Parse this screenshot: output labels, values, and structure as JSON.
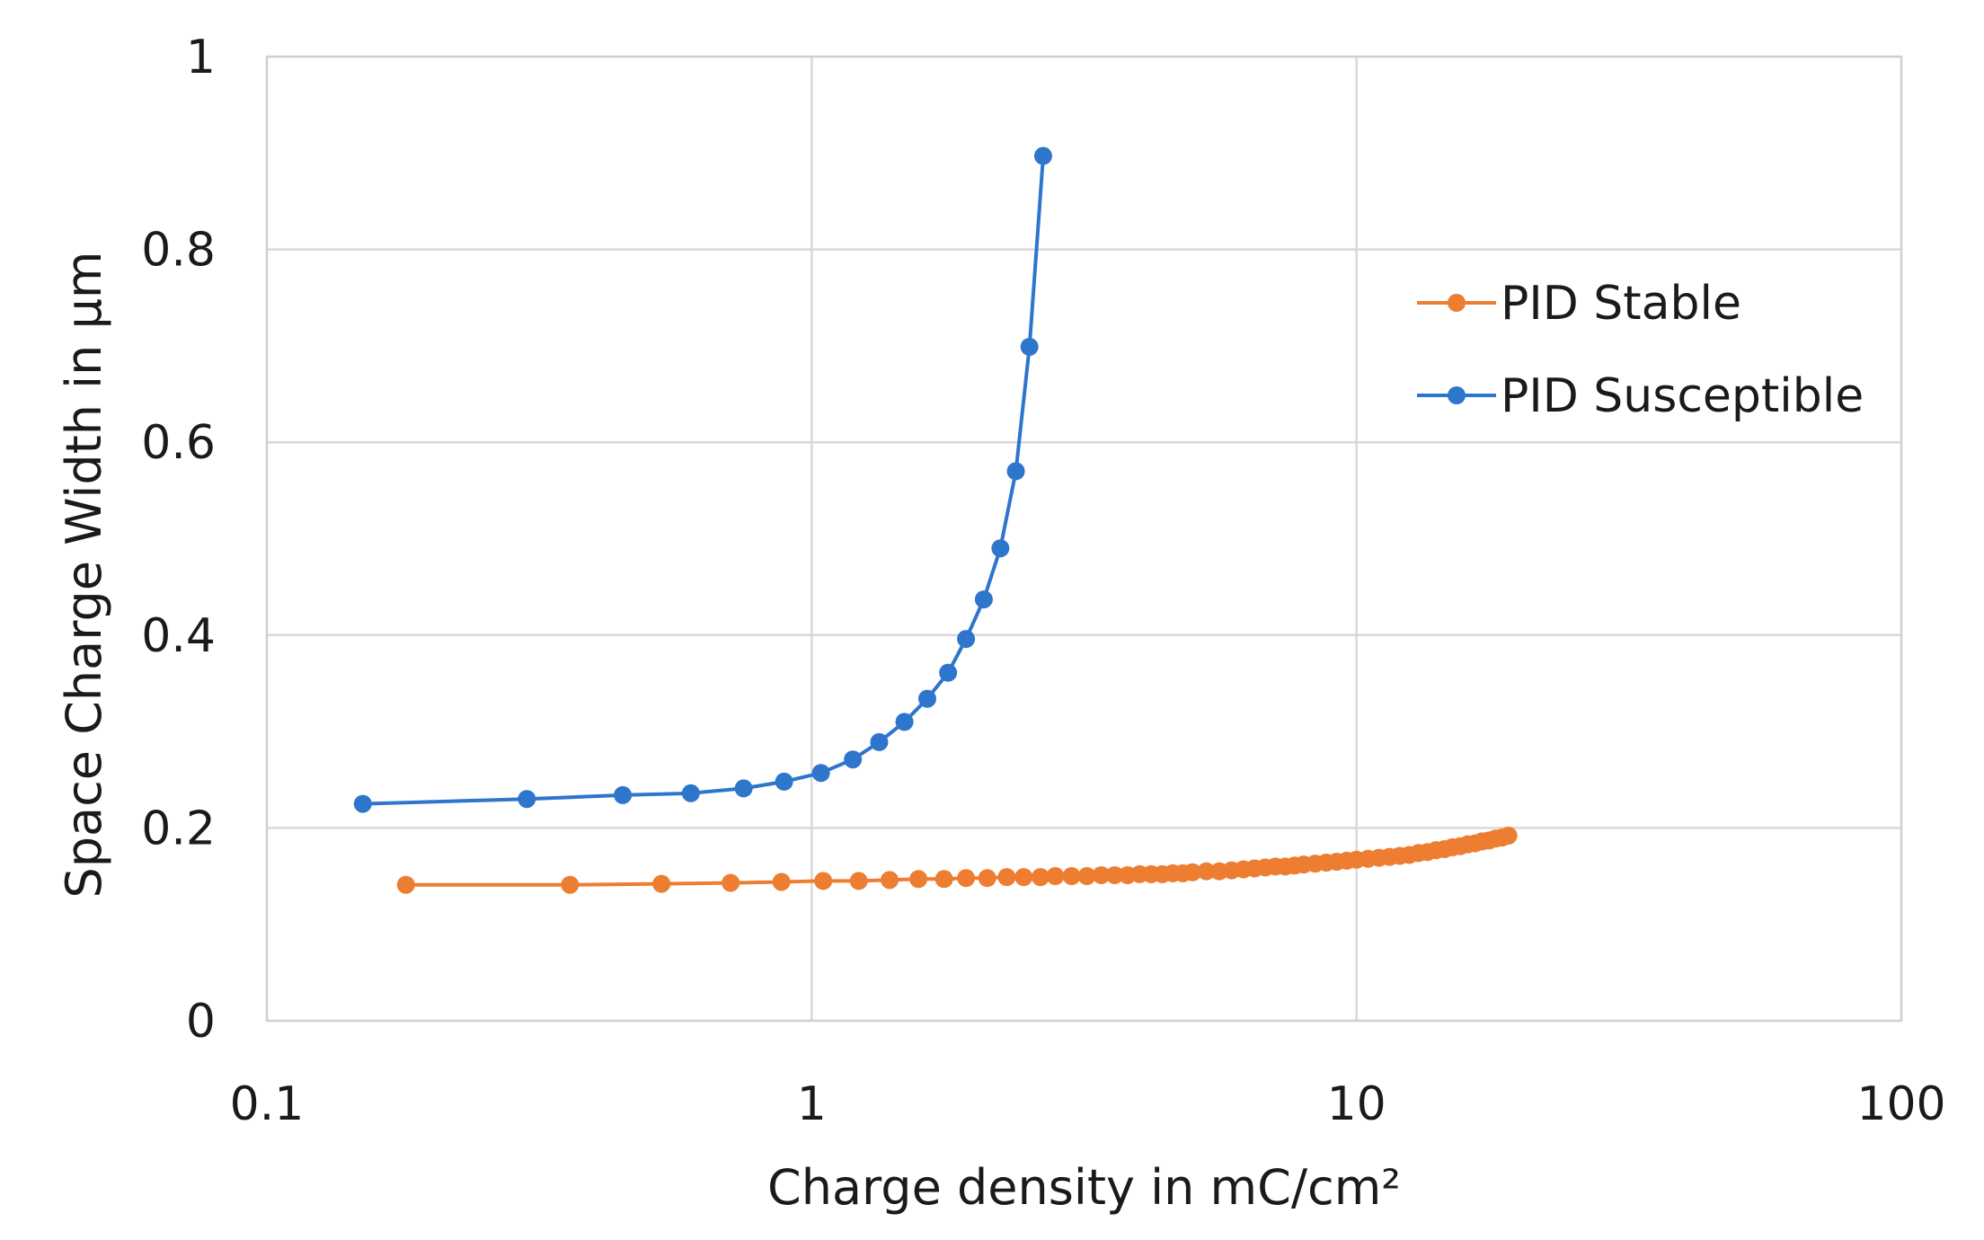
{
  "chart_data": {
    "type": "line",
    "title": "",
    "xlabel": "Charge density in mC/cm²",
    "ylabel": "Space Charge Width in µm",
    "x_scale": "log",
    "xlim": [
      0.1,
      100
    ],
    "ylim": [
      0,
      1
    ],
    "x_ticks": [
      0.1,
      1,
      10,
      100
    ],
    "x_tick_labels": [
      "0.1",
      "1",
      "10",
      "100"
    ],
    "y_ticks": [
      0,
      0.2,
      0.4,
      0.6,
      0.8,
      1
    ],
    "y_tick_labels": [
      "0",
      "0.2",
      "0.4",
      "0.6",
      "0.8",
      "1"
    ],
    "grid": true,
    "legend_position": "right",
    "series": [
      {
        "name": "PID Stable",
        "color": "#ED7D31",
        "x": [
          0.18,
          0.36,
          0.53,
          0.71,
          0.88,
          1.05,
          1.22,
          1.39,
          1.57,
          1.75,
          1.92,
          2.1,
          2.28,
          2.45,
          2.63,
          2.8,
          3.0,
          3.2,
          3.4,
          3.6,
          3.8,
          4.0,
          4.2,
          4.4,
          4.6,
          4.8,
          5.0,
          5.3,
          5.6,
          5.9,
          6.2,
          6.5,
          6.8,
          7.1,
          7.4,
          7.7,
          8.0,
          8.4,
          8.8,
          9.2,
          9.6,
          10.0,
          10.5,
          11.0,
          11.5,
          12.0,
          12.5,
          13.0,
          13.5,
          14.0,
          14.5,
          15.0,
          15.5,
          16.0,
          16.5,
          17.0,
          17.5,
          18.0,
          18.5,
          19.0
        ],
        "y": [
          0.141,
          0.141,
          0.142,
          0.143,
          0.144,
          0.145,
          0.145,
          0.146,
          0.147,
          0.147,
          0.148,
          0.148,
          0.149,
          0.149,
          0.149,
          0.15,
          0.15,
          0.15,
          0.151,
          0.151,
          0.151,
          0.152,
          0.152,
          0.152,
          0.153,
          0.153,
          0.154,
          0.155,
          0.155,
          0.156,
          0.157,
          0.158,
          0.159,
          0.16,
          0.16,
          0.161,
          0.162,
          0.163,
          0.164,
          0.165,
          0.166,
          0.167,
          0.168,
          0.169,
          0.17,
          0.171,
          0.172,
          0.174,
          0.175,
          0.177,
          0.178,
          0.18,
          0.181,
          0.183,
          0.184,
          0.186,
          0.187,
          0.189,
          0.19,
          0.192
        ]
      },
      {
        "name": "PID Susceptible",
        "color": "#2E75CC",
        "x": [
          0.15,
          0.3,
          0.45,
          0.6,
          0.75,
          0.89,
          1.04,
          1.19,
          1.33,
          1.48,
          1.63,
          1.78,
          1.92,
          2.07,
          2.22,
          2.37,
          2.51,
          2.66
        ],
        "y": [
          0.225,
          0.23,
          0.234,
          0.236,
          0.241,
          0.248,
          0.257,
          0.271,
          0.289,
          0.31,
          0.334,
          0.361,
          0.396,
          0.437,
          0.49,
          0.57,
          0.699,
          0.897
        ]
      }
    ]
  }
}
